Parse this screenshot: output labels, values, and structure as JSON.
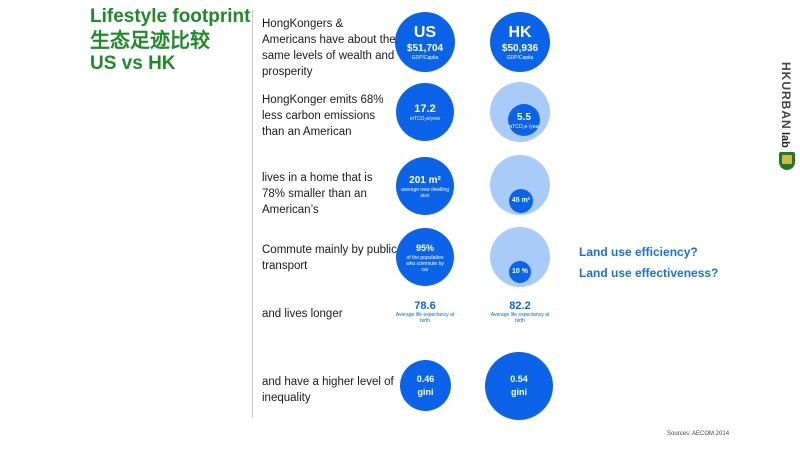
{
  "title": {
    "line1": "Lifestyle footprint",
    "line2": "生态足迹比较",
    "line3": "US vs HK"
  },
  "rows": [
    {
      "text": "HongKongers & Americans have about the same levels of wealth and prosperity",
      "us": {
        "head": "US",
        "value": "$51,704",
        "label": "GDP/Capita"
      },
      "hk": {
        "head": "HK",
        "value": "$50,936",
        "label": "GDP/Capita"
      }
    },
    {
      "text": "HongKonger emits 68% less carbon emissions than an American",
      "us": {
        "value": "17.2",
        "label": "mTCO₂e/year"
      },
      "hk": {
        "value": "5.5",
        "label": "mTCO₂e /year"
      }
    },
    {
      "text": "lives in a home that is 78% smaller than an American’s",
      "us": {
        "value": "201 m²",
        "label": "average new dwelling size"
      },
      "hk": {
        "value": "45 m²"
      }
    },
    {
      "text": "Commute mainly by public transport",
      "us": {
        "value": "95%",
        "label": "of the population who commute by car"
      },
      "hk": {
        "value": "10 %"
      }
    },
    {
      "text": "and lives longer",
      "us": {
        "value": "78.6",
        "label": "Average life expectancy at birth"
      },
      "hk": {
        "value": "82.2",
        "label": "Average life expectancy at birth"
      }
    },
    {
      "text": "and have a higher level of inequality",
      "us": {
        "value": "0.46",
        "label": "gini"
      },
      "hk": {
        "value": "0.54",
        "label": "gini"
      }
    }
  ],
  "questions": [
    "Land use efficiency?",
    "Land use effectiveness?"
  ],
  "logo": {
    "name": "HKURBAN",
    "suffix": "lab"
  },
  "source": "Sources: AECOM 2014",
  "colors": {
    "title_green": "#1f8a2a",
    "circle_blue": "#0a63e8",
    "circle_light": "#a9cbf7",
    "question_blue": "#1a6fe0"
  }
}
